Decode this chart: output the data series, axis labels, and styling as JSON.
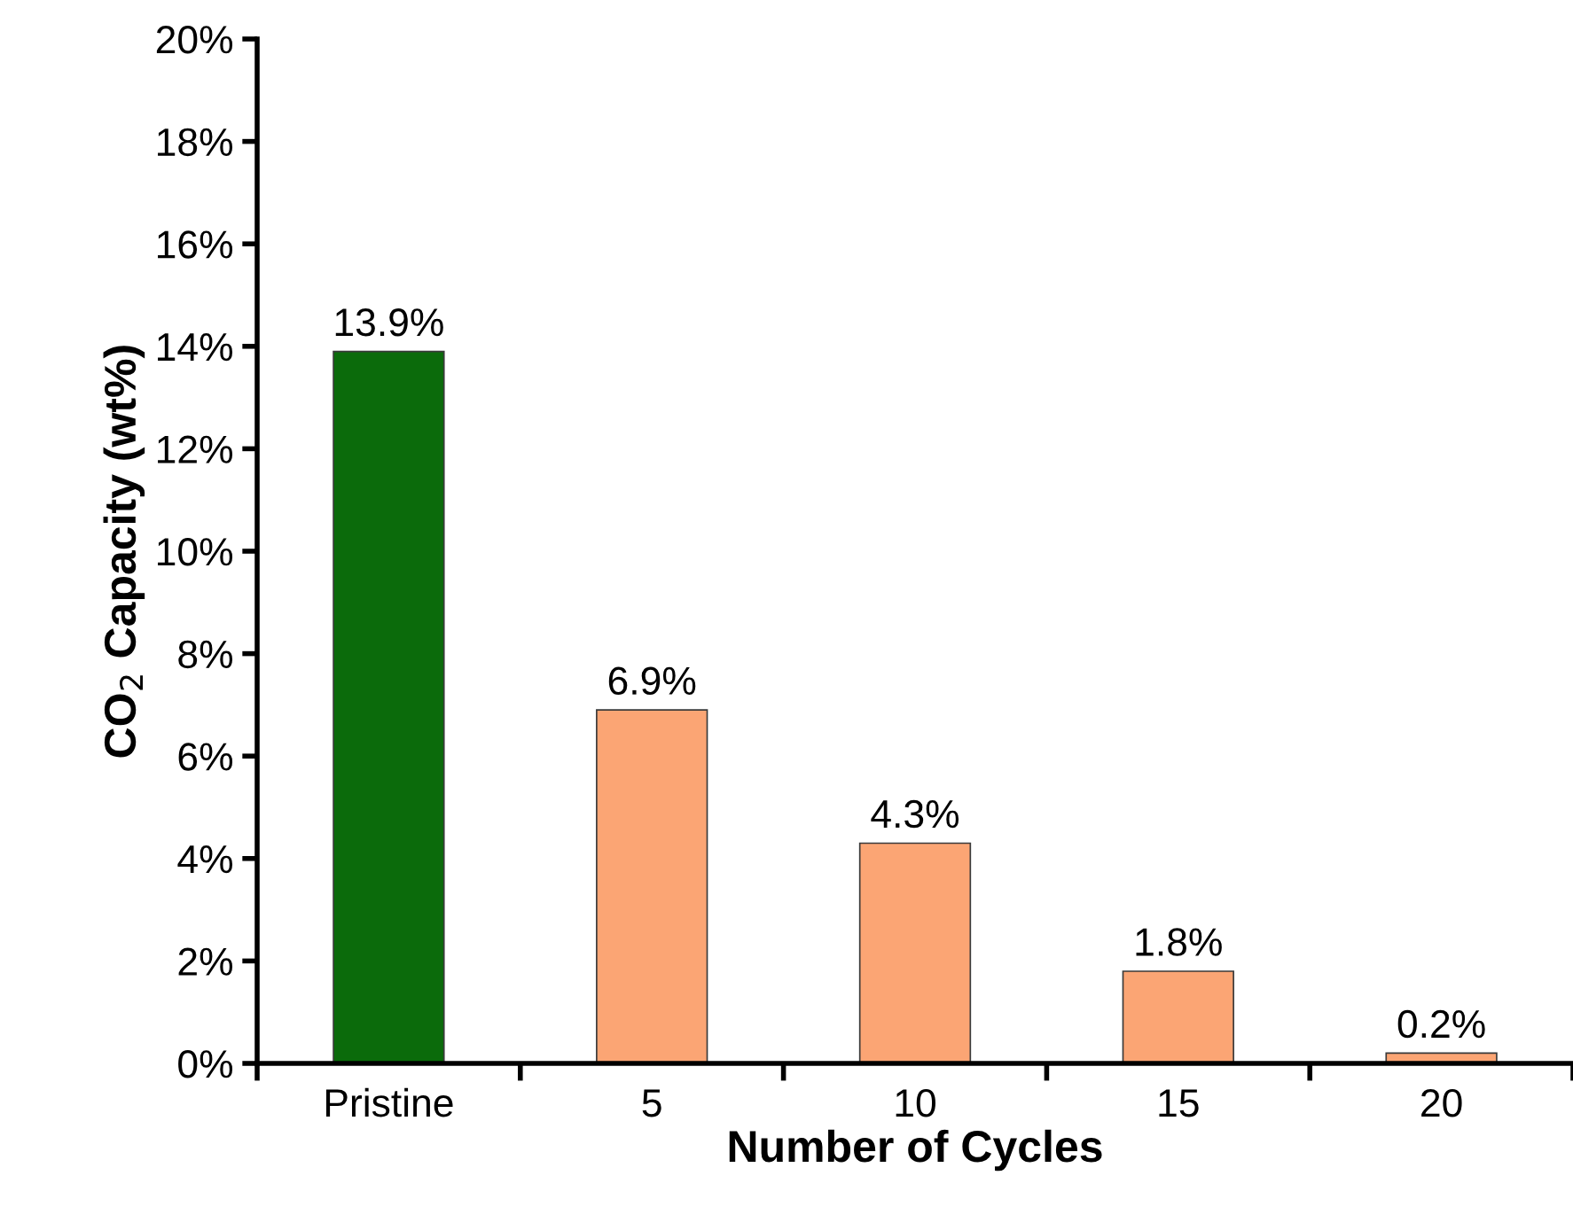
{
  "chart_data": {
    "type": "bar",
    "xlabel": "Number of Cycles",
    "ylabel": "CO$_{2}$ Capacity (wt%)",
    "categories": [
      "Pristine",
      "5",
      "10",
      "15",
      "20"
    ],
    "values": [
      13.9,
      6.9,
      4.3,
      1.8,
      0.2
    ],
    "colors": [
      "#0b6b0b",
      "#fba574",
      "#fba574",
      "#fba574",
      "#fba574"
    ],
    "value_labels": [
      "13.9%",
      "6.9%",
      "4.3%",
      "1.8%",
      "0.2%"
    ],
    "ylim": [
      0,
      20
    ],
    "yticks": [
      {
        "value": 0,
        "label": "0%"
      },
      {
        "value": 2,
        "label": "2%"
      },
      {
        "value": 4,
        "label": "4%"
      },
      {
        "value": 6,
        "label": "6%"
      },
      {
        "value": 8,
        "label": "8%"
      },
      {
        "value": 10,
        "label": "10%"
      },
      {
        "value": 12,
        "label": "12%"
      },
      {
        "value": 14,
        "label": "14%"
      },
      {
        "value": 16,
        "label": "16%"
      },
      {
        "value": 18,
        "label": "18%"
      },
      {
        "value": 20,
        "label": "20%"
      }
    ],
    "grid": false,
    "legend": false
  }
}
